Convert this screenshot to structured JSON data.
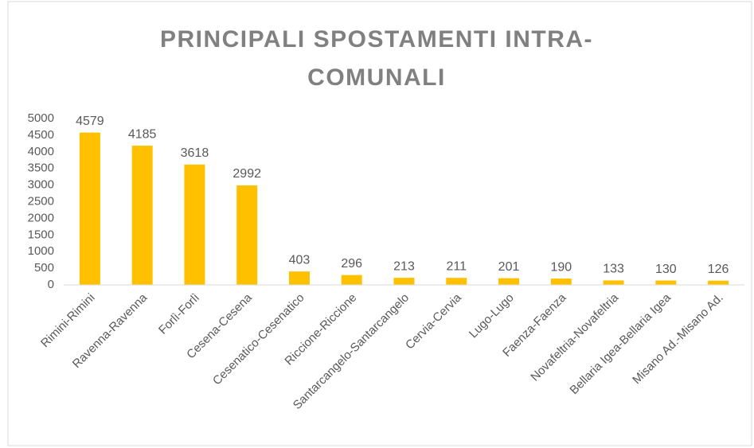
{
  "chart_data": {
    "type": "bar",
    "title": "PRINCIPALI SPOSTAMENTI INTRA-COMUNALI",
    "categories": [
      "Rimini-Rimini",
      "Ravenna-Ravenna",
      "Forlì-Forlì",
      "Cesena-Cesena",
      "Cesenatico-Cesenatico",
      "Riccione-Riccione",
      "Santarcangelo-Santarcangelo",
      "Cervia-Cervia",
      "Lugo-Lugo",
      "Faenza-Faenza",
      "Novafeltria-Novafeltria",
      "Bellaria Igea-Bellaria Igea",
      "Misano Ad.-Misano Ad."
    ],
    "values": [
      4579,
      4185,
      3618,
      2992,
      403,
      296,
      213,
      211,
      201,
      190,
      133,
      130,
      126
    ],
    "color": "#ffc000",
    "ylim": [
      0,
      5000
    ],
    "yticks": [
      0,
      500,
      1000,
      1500,
      2000,
      2500,
      3000,
      3500,
      4000,
      4500,
      5000
    ],
    "grid": false
  }
}
